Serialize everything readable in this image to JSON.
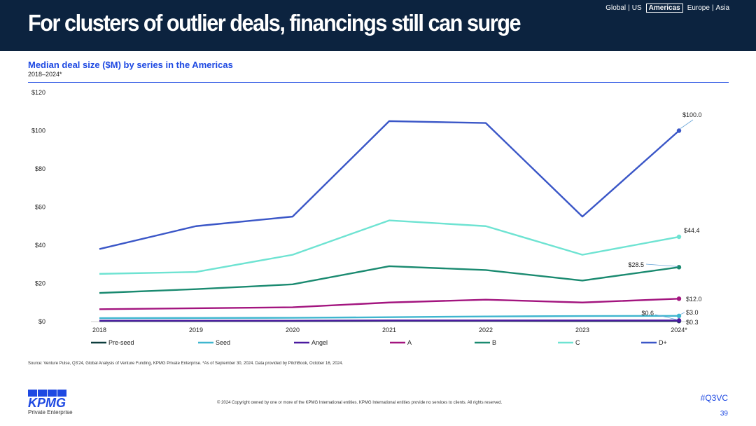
{
  "header": {
    "title": "For clusters of outlier deals, financings still can surge",
    "regions": [
      "Global",
      "US",
      "Americas",
      "Europe",
      "Asia"
    ],
    "active_region": "Americas"
  },
  "footer": {
    "source": "Source: Venture Pulse, Q3'24, Global Analysis of Venture Funding, KPMG Private Enterprise. *As of September 30, 2024. Data provided by PitchBook, October 16, 2024.",
    "copyright": "© 2024 Copyright owned by one or more of the KPMG International entities. KPMG International entities provide no services to clients. All rights reserved.",
    "logo_text": "KPMG",
    "logo_sub": "Private Enterprise",
    "tag": "#Q3VC",
    "page_number": "39"
  },
  "chart_data": {
    "type": "line",
    "title": "Median deal size ($M) by series in the Americas",
    "subtitle": "2018–2024*",
    "xlabel": "",
    "ylabel": "",
    "categories": [
      "2018",
      "2019",
      "2020",
      "2021",
      "2022",
      "2023",
      "2024*"
    ],
    "ylim": [
      0,
      120
    ],
    "yticks": [
      0,
      20,
      40,
      60,
      80,
      100,
      120
    ],
    "ytick_labels": [
      "$0",
      "$20",
      "$40",
      "$60",
      "$80",
      "$100",
      "$120"
    ],
    "legend_position": "bottom",
    "series": [
      {
        "name": "Pre-seed",
        "color": "#0d3d3d",
        "values": [
          0.3,
          0.3,
          0.3,
          0.4,
          0.4,
          0.3,
          0.3
        ],
        "end_label": "$0.3"
      },
      {
        "name": "Seed",
        "color": "#3fb6cf",
        "values": [
          1.8,
          1.9,
          2.0,
          2.3,
          2.7,
          2.9,
          3.0
        ],
        "end_label": "$3.0"
      },
      {
        "name": "Angel",
        "color": "#4a1aa0",
        "values": [
          0.5,
          0.5,
          0.5,
          0.6,
          0.6,
          0.6,
          0.6
        ],
        "end_label": "$0.6"
      },
      {
        "name": "A",
        "color": "#a3157f",
        "values": [
          6.5,
          7,
          7.5,
          10,
          11.5,
          10,
          12.0
        ],
        "end_label": "$12.0"
      },
      {
        "name": "B",
        "color": "#1a8a70",
        "values": [
          15,
          17,
          19.5,
          29,
          27,
          21.5,
          28.5
        ],
        "end_label": "$28.5"
      },
      {
        "name": "C",
        "color": "#6ee3d2",
        "values": [
          25,
          26,
          35,
          53,
          50,
          35,
          44.4
        ],
        "end_label": "$44.4"
      },
      {
        "name": "D+",
        "color": "#3a56c7",
        "values": [
          38,
          50,
          55,
          105,
          104,
          55,
          100.0
        ],
        "end_label": "$100.0"
      }
    ]
  }
}
